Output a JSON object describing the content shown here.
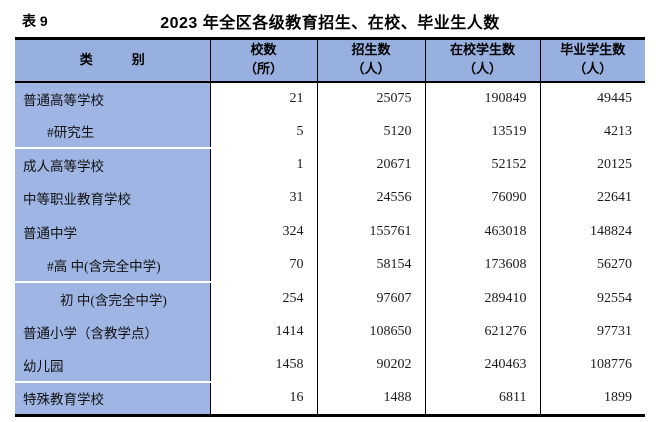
{
  "page": {
    "table_label": "表 9",
    "title": "2023 年全区各级教育招生、在校、毕业生人数"
  },
  "table": {
    "columns": [
      {
        "label": "类　　　别",
        "sub": ""
      },
      {
        "label": "校数",
        "sub": "（所）"
      },
      {
        "label": "招生数",
        "sub": "（人）"
      },
      {
        "label": "在校学生数",
        "sub": "（人）"
      },
      {
        "label": "毕业学生数",
        "sub": "（人）"
      }
    ],
    "rows": [
      {
        "category": "普通高等学校",
        "indent": 0,
        "separator_above": false,
        "schools": "21",
        "enrollment": "25075",
        "students": "190849",
        "graduates": "49445"
      },
      {
        "category": "#研究生",
        "indent": 1,
        "separator_above": false,
        "schools": "5",
        "enrollment": "5120",
        "students": "13519",
        "graduates": "4213"
      },
      {
        "category": "成人高等学校",
        "indent": 0,
        "separator_above": true,
        "schools": "1",
        "enrollment": "20671",
        "students": "52152",
        "graduates": "20125"
      },
      {
        "category": "中等职业教育学校",
        "indent": 0,
        "separator_above": false,
        "schools": "31",
        "enrollment": "24556",
        "students": "76090",
        "graduates": "22641"
      },
      {
        "category": "普通中学",
        "indent": 0,
        "separator_above": false,
        "schools": "324",
        "enrollment": "155761",
        "students": "463018",
        "graduates": "148824"
      },
      {
        "category": "#高 中(含完全中学)",
        "indent": 1,
        "separator_above": false,
        "schools": "70",
        "enrollment": "58154",
        "students": "173608",
        "graduates": "56270"
      },
      {
        "category": "初 中(含完全中学)",
        "indent": 2,
        "separator_above": true,
        "schools": "254",
        "enrollment": "97607",
        "students": "289410",
        "graduates": "92554"
      },
      {
        "category": "普通小学（含教学点）",
        "indent": 0,
        "separator_above": false,
        "schools": "1414",
        "enrollment": "108650",
        "students": "621276",
        "graduates": "97731"
      },
      {
        "category": "幼儿园",
        "indent": 0,
        "separator_above": false,
        "schools": "1458",
        "enrollment": "90202",
        "students": "240463",
        "graduates": "108776"
      },
      {
        "category": "特殊教育学校",
        "indent": 0,
        "separator_above": true,
        "schools": "16",
        "enrollment": "1488",
        "students": "6811",
        "graduates": "1899"
      }
    ],
    "colors": {
      "header_bg": "#98B0DF",
      "category_bg": "#9FB5E4",
      "border": "#000000",
      "group_separator": "#FFFFFF"
    }
  }
}
